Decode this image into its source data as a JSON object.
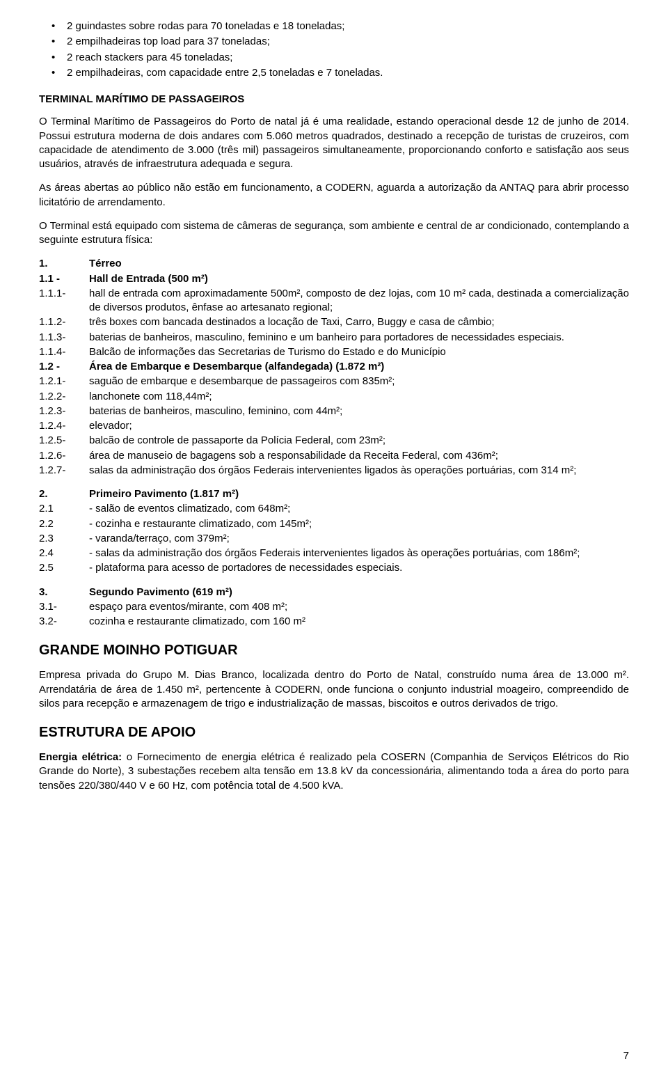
{
  "colors": {
    "text": "#000000",
    "background": "#ffffff"
  },
  "typography": {
    "fontFamily": "Arial",
    "bodySize": 15,
    "headingSize": 20,
    "lineHeight": 1.35
  },
  "bullets": [
    "2 guindastes sobre rodas para 70 toneladas e 18 toneladas;",
    "2 empilhadeiras top load para 37 toneladas;",
    "2 reach stackers para 45 toneladas;",
    "2 empilhadeiras, com capacidade entre 2,5 toneladas e 7 toneladas."
  ],
  "heading1": "TERMINAL MARÍTIMO DE PASSAGEIROS",
  "p1": "O Terminal Marítimo de Passageiros do Porto de natal já é uma realidade, estando operacional desde 12 de junho de 2014. Possui estrutura moderna de dois andares com 5.060 metros quadrados, destinado a recepção de turistas de cruzeiros, com capacidade de atendimento de 3.000 (três mil) passageiros simultaneamente, proporcionando conforto e satisfação aos seus usuários, através de infraestrutura adequada e segura.",
  "p2": "As áreas abertas ao público não estão em funcionamento, a CODERN, aguarda a autorização da ANTAQ para abrir processo licitatório de arrendamento.",
  "p3": "O Terminal está equipado com sistema de câmeras de segurança, som ambiente e central de ar condicionado, contemplando a seguinte estrutura física:",
  "sec1": [
    {
      "num": "1.",
      "txt": "Térreo",
      "bold": true
    },
    {
      "num": "1.1 -",
      "txt": "Hall de Entrada (500 m²)",
      "bold": true
    },
    {
      "num": "1.1.1-",
      "txt": "hall de entrada com aproximadamente 500m², composto de dez lojas, com 10 m² cada, destinada a comercialização de diversos produtos, ênfase ao artesanato regional;",
      "bold": false,
      "justify": true
    },
    {
      "num": "1.1.2-",
      "txt": "três boxes com bancada destinados a locação de Taxi, Carro, Buggy e casa de câmbio;",
      "bold": false
    },
    {
      "num": "1.1.3-",
      "txt": "baterias de banheiros, masculino, feminino e um banheiro para portadores de necessidades especiais.",
      "bold": false
    },
    {
      "num": "1.1.4-",
      "txt": "Balcão de informações das Secretarias de Turismo do Estado e do Município",
      "bold": false
    },
    {
      "num": "1.2 -",
      "txt": "Área de Embarque e Desembarque (alfandegada) (1.872 m²)",
      "bold": true
    },
    {
      "num": "1.2.1-",
      "txt": "saguão de embarque e desembarque de passageiros com 835m²;",
      "bold": false
    },
    {
      "num": "1.2.2-",
      "txt": "lanchonete com 118,44m²;",
      "bold": false
    },
    {
      "num": "1.2.3-",
      "txt": "baterias de banheiros, masculino, feminino, com 44m²;",
      "bold": false
    },
    {
      "num": "1.2.4-",
      "txt": "elevador;",
      "bold": false
    },
    {
      "num": "1.2.5-",
      "txt": "balcão de controle de passaporte da Polícia Federal, com 23m²;",
      "bold": false
    },
    {
      "num": "1.2.6-",
      "txt": "área de manuseio de bagagens sob a responsabilidade da Receita Federal, com 436m²;",
      "bold": false
    },
    {
      "num": "1.2.7-",
      "txt": "salas da administração dos órgãos Federais intervenientes ligados às operações portuárias, com 314 m²;",
      "bold": false
    }
  ],
  "sec2": [
    {
      "num": "2.",
      "txt": "Primeiro Pavimento (1.817 m²)",
      "bold": true
    },
    {
      "num": "2.1",
      "txt": "- salão de eventos climatizado, com 648m²;",
      "bold": false
    },
    {
      "num": "2.2",
      "txt": "- cozinha e restaurante climatizado, com 145m²;",
      "bold": false
    },
    {
      "num": "2.3",
      "txt": "- varanda/terraço, com 379m²;",
      "bold": false
    },
    {
      "num": "2.4",
      "txt": "- salas da administração dos órgãos Federais intervenientes ligados às operações portuárias, com 186m²;",
      "bold": false,
      "justify": true
    },
    {
      "num": "2.5",
      "txt": "- plataforma para acesso de portadores de necessidades especiais.",
      "bold": false
    }
  ],
  "sec3": [
    {
      "num": "3.",
      "txt": "Segundo Pavimento (619 m²)",
      "bold": true
    },
    {
      "num": "3.1-",
      "txt": "espaço para eventos/mirante, com 408 m²;",
      "bold": false
    },
    {
      "num": "3.2-",
      "txt": "cozinha e restaurante climatizado, com 160 m²",
      "bold": false
    }
  ],
  "heading2": "GRANDE MOINHO POTIGUAR",
  "p4": "Empresa privada do Grupo M. Dias Branco, localizada dentro do Porto de Natal, construído numa área de 13.000 m². Arrendatária de área de 1.450 m², pertencente à CODERN, onde funciona o conjunto industrial moageiro, compreendido de silos para recepção e armazenagem de trigo e industrialização de massas, biscoitos e outros derivados de trigo.",
  "heading3": "ESTRUTURA DE APOIO",
  "p5_label": "Energia elétrica:",
  "p5_text": " o Fornecimento de energia elétrica é realizado pela COSERN (Companhia de Serviços Elétricos do Rio Grande do Norte), 3 subestações recebem alta tensão em 13.8 kV da concessionária, alimentando toda a área do porto para tensões 220/380/440 V e 60 Hz, com potência total de 4.500 kVA.",
  "pageNumber": "7"
}
